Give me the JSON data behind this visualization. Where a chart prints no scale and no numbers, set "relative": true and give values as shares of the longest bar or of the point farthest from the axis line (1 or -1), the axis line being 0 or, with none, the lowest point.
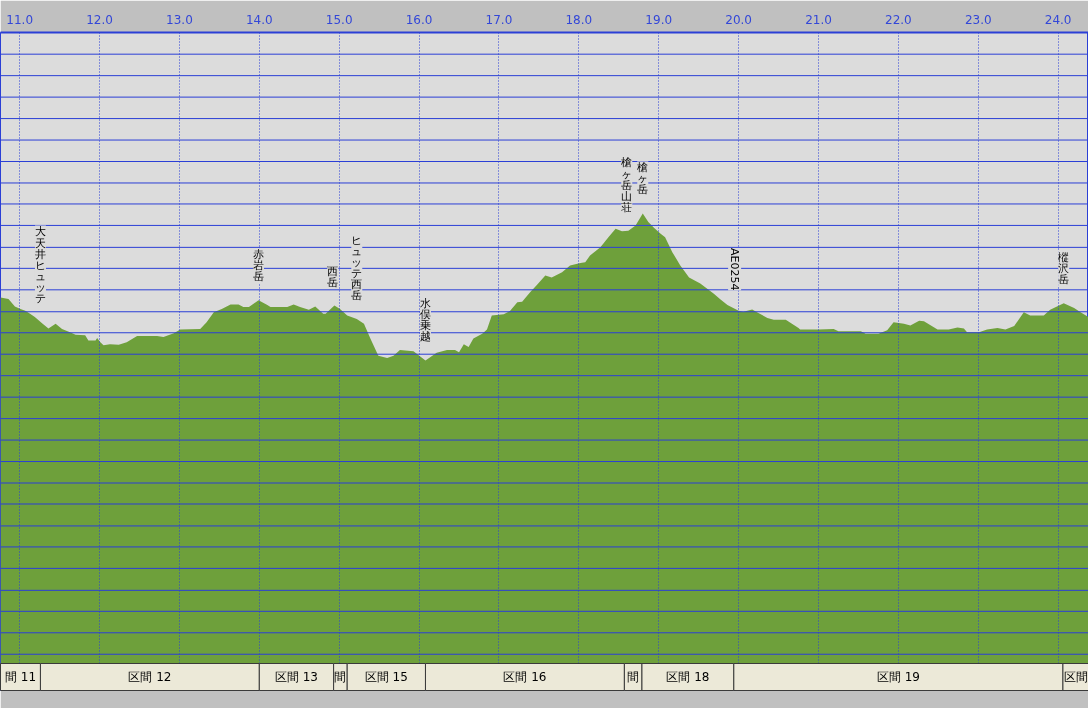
{
  "chart_data": {
    "type": "area",
    "relative": true,
    "color": "#6ea03b",
    "grid": "x",
    "xlim": [
      10.76,
      24.38
    ],
    "xticks": [
      {
        "value": 11,
        "label": "11.0"
      },
      {
        "value": 12,
        "label": "12.0"
      },
      {
        "value": 13,
        "label": "13.0"
      },
      {
        "value": 14,
        "label": "14.0"
      },
      {
        "value": 15,
        "label": "15.0"
      },
      {
        "value": 16,
        "label": "16.0"
      },
      {
        "value": 17,
        "label": "17.0"
      },
      {
        "value": 18,
        "label": "18.0"
      },
      {
        "value": 19,
        "label": "19.0"
      },
      {
        "value": 20,
        "label": "20.0"
      },
      {
        "value": 21,
        "label": "21.0"
      },
      {
        "value": 22,
        "label": "22.0"
      },
      {
        "value": 23,
        "label": "23.0"
      },
      {
        "value": 24,
        "label": "24.0"
      }
    ],
    "x": [
      10.76,
      10.86,
      10.94,
      11.01,
      11.07,
      11.13,
      11.19,
      11.28,
      11.36,
      11.45,
      11.53,
      11.63,
      11.7,
      11.82,
      11.86,
      11.95,
      11.97,
      12.01,
      12.05,
      12.13,
      12.24,
      12.34,
      12.47,
      12.72,
      12.8,
      12.93,
      13.01,
      13.26,
      13.34,
      13.43,
      13.53,
      13.64,
      13.74,
      13.8,
      13.87,
      13.99,
      14.1,
      14.14,
      14.35,
      14.43,
      14.51,
      14.62,
      14.7,
      14.8,
      14.83,
      14.94,
      15.01,
      15.1,
      15.22,
      15.31,
      15.39,
      15.49,
      15.6,
      15.68,
      15.76,
      15.93,
      16.08,
      16.22,
      16.35,
      16.45,
      16.5,
      16.56,
      16.62,
      16.68,
      16.79,
      16.85,
      16.91,
      17.06,
      17.14,
      17.23,
      17.29,
      17.39,
      17.48,
      17.58,
      17.66,
      17.79,
      17.89,
      18.02,
      18.08,
      18.14,
      18.27,
      18.37,
      18.46,
      18.54,
      18.62,
      18.71,
      18.8,
      18.87,
      18.94,
      19.02,
      19.08,
      19.17,
      19.27,
      19.38,
      19.52,
      19.69,
      19.77,
      19.86,
      20.0,
      20.06,
      20.17,
      20.23,
      20.36,
      20.44,
      20.59,
      20.75,
      20.77,
      21.0,
      21.19,
      21.25,
      21.53,
      21.59,
      21.75,
      21.86,
      21.94,
      22.07,
      22.15,
      22.26,
      22.32,
      22.49,
      22.63,
      22.74,
      22.82,
      22.86,
      23.01,
      23.11,
      23.24,
      23.34,
      23.45,
      23.57,
      23.65,
      23.82,
      23.9,
      24.07,
      24.2,
      24.28,
      24.38
    ],
    "values": [
      0.824,
      0.821,
      0.805,
      0.8,
      0.796,
      0.79,
      0.783,
      0.77,
      0.759,
      0.769,
      0.758,
      0.751,
      0.746,
      0.745,
      0.734,
      0.734,
      0.739,
      0.73,
      0.724,
      0.726,
      0.725,
      0.73,
      0.743,
      0.743,
      0.741,
      0.749,
      0.757,
      0.758,
      0.772,
      0.793,
      0.8,
      0.809,
      0.809,
      0.804,
      0.804,
      0.818,
      0.808,
      0.804,
      0.804,
      0.809,
      0.804,
      0.798,
      0.805,
      0.79,
      0.79,
      0.807,
      0.8,
      0.786,
      0.779,
      0.769,
      0.738,
      0.702,
      0.697,
      0.702,
      0.714,
      0.711,
      0.692,
      0.708,
      0.714,
      0.714,
      0.709,
      0.726,
      0.72,
      0.738,
      0.748,
      0.757,
      0.786,
      0.789,
      0.796,
      0.814,
      0.815,
      0.835,
      0.851,
      0.87,
      0.866,
      0.877,
      0.891,
      0.896,
      0.898,
      0.912,
      0.929,
      0.95,
      0.968,
      0.963,
      0.964,
      0.975,
      1.0,
      0.982,
      0.97,
      0.958,
      0.95,
      0.919,
      0.891,
      0.866,
      0.853,
      0.832,
      0.82,
      0.808,
      0.796,
      0.794,
      0.799,
      0.793,
      0.781,
      0.777,
      0.777,
      0.76,
      0.757,
      0.757,
      0.758,
      0.753,
      0.753,
      0.748,
      0.748,
      0.755,
      0.772,
      0.769,
      0.765,
      0.775,
      0.774,
      0.757,
      0.757,
      0.761,
      0.759,
      0.751,
      0.751,
      0.757,
      0.76,
      0.757,
      0.764,
      0.793,
      0.786,
      0.786,
      0.798,
      0.812,
      0.802,
      0.793,
      0.783
    ],
    "ref_lines": [
      {
        "axis": "y",
        "value": 0.076,
        "color": "#2b3fd6"
      },
      {
        "axis": "y",
        "value": 0.121,
        "color": "#2b3fd6"
      },
      {
        "axis": "y",
        "value": 0.166,
        "color": "#2b3fd6"
      },
      {
        "axis": "y",
        "value": 0.21,
        "color": "#2b3fd6"
      },
      {
        "axis": "y",
        "value": 0.256,
        "color": "#2b3fd6"
      },
      {
        "axis": "y",
        "value": 0.301,
        "color": "#2b3fd6"
      },
      {
        "axis": "y",
        "value": 0.345,
        "color": "#2b3fd6"
      },
      {
        "axis": "y",
        "value": 0.391,
        "color": "#2b3fd6"
      },
      {
        "axis": "y",
        "value": 0.435,
        "color": "#2b3fd6"
      },
      {
        "axis": "y",
        "value": 0.48,
        "color": "#2b3fd6"
      },
      {
        "axis": "y",
        "value": 0.525,
        "color": "#2b3fd6"
      },
      {
        "axis": "y",
        "value": 0.57,
        "color": "#2b3fd6"
      },
      {
        "axis": "y",
        "value": 0.615,
        "color": "#2b3fd6"
      },
      {
        "axis": "y",
        "value": 0.66,
        "color": "#2b3fd6"
      },
      {
        "axis": "y",
        "value": 0.705,
        "color": "#2b3fd6"
      },
      {
        "axis": "y",
        "value": 0.75,
        "color": "#2b3fd6"
      },
      {
        "axis": "y",
        "value": 0.794,
        "color": "#2b3fd6"
      },
      {
        "axis": "y",
        "value": 0.84,
        "color": "#2b3fd6"
      },
      {
        "axis": "y",
        "value": 0.885,
        "color": "#2b3fd6"
      },
      {
        "axis": "y",
        "value": 0.929,
        "color": "#2b3fd6"
      },
      {
        "axis": "y",
        "value": 0.975,
        "color": "#2b3fd6"
      },
      {
        "axis": "y",
        "value": 1.02,
        "color": "#2b3fd6"
      },
      {
        "axis": "y",
        "value": 1.064,
        "color": "#2b3fd6"
      },
      {
        "axis": "y",
        "value": 1.109,
        "color": "#2b3fd6"
      },
      {
        "axis": "y",
        "value": 1.154,
        "color": "#2b3fd6"
      },
      {
        "axis": "y",
        "value": 1.199,
        "color": "#2b3fd6"
      },
      {
        "axis": "y",
        "value": 1.244,
        "color": "#2b3fd6"
      },
      {
        "axis": "y",
        "value": 1.289,
        "color": "#2b3fd6"
      },
      {
        "axis": "y",
        "value": 1.334,
        "color": "#2b3fd6"
      }
    ],
    "annotations": [
      {
        "text": "大天井ヒュッテ",
        "x": 11.26,
        "y": 0.773
      },
      {
        "text": "赤岩岳",
        "x": 13.99,
        "y": 0.818
      },
      {
        "text": "西岳",
        "x": 14.92,
        "y": 0.807
      },
      {
        "text": "ヒュッテ西岳",
        "x": 15.22,
        "y": 0.779
      },
      {
        "text": "水俣乗越",
        "x": 16.08,
        "y": 0.692
      },
      {
        "text": "槍ヶ岳山荘",
        "x": 18.6,
        "y": 0.964
      },
      {
        "text": "槍ヶ岳",
        "x": 18.8,
        "y": 1.0
      },
      {
        "text": "AE0254",
        "x": 19.95,
        "y": 0.803
      },
      {
        "text": "樅沢岳",
        "x": 24.07,
        "y": 0.812
      }
    ],
    "bands": [
      {
        "axis": "x",
        "from": 10.76,
        "to": 11.26,
        "label": "間 11",
        "color": "#ece9d8"
      },
      {
        "axis": "x",
        "from": 11.26,
        "to": 14.0,
        "label": "区間 12",
        "color": "#ece9d8"
      },
      {
        "axis": "x",
        "from": 14.0,
        "to": 14.93,
        "label": "区間 13",
        "color": "#ece9d8"
      },
      {
        "axis": "x",
        "from": 14.93,
        "to": 15.1,
        "label": "間",
        "color": "#ece9d8"
      },
      {
        "axis": "x",
        "from": 15.1,
        "to": 16.08,
        "label": "区間 15",
        "color": "#ece9d8"
      },
      {
        "axis": "x",
        "from": 16.08,
        "to": 18.57,
        "label": "区間 16",
        "color": "#ece9d8"
      },
      {
        "axis": "x",
        "from": 18.57,
        "to": 18.79,
        "label": "間",
        "color": "#ece9d8"
      },
      {
        "axis": "x",
        "from": 18.79,
        "to": 19.94,
        "label": "区間 18",
        "color": "#ece9d8"
      },
      {
        "axis": "x",
        "from": 19.94,
        "to": 24.06,
        "label": "区間 19",
        "color": "#ece9d8"
      },
      {
        "axis": "x",
        "from": 24.06,
        "to": 24.38,
        "label": "区間",
        "color": "#ece9d8"
      }
    ]
  }
}
